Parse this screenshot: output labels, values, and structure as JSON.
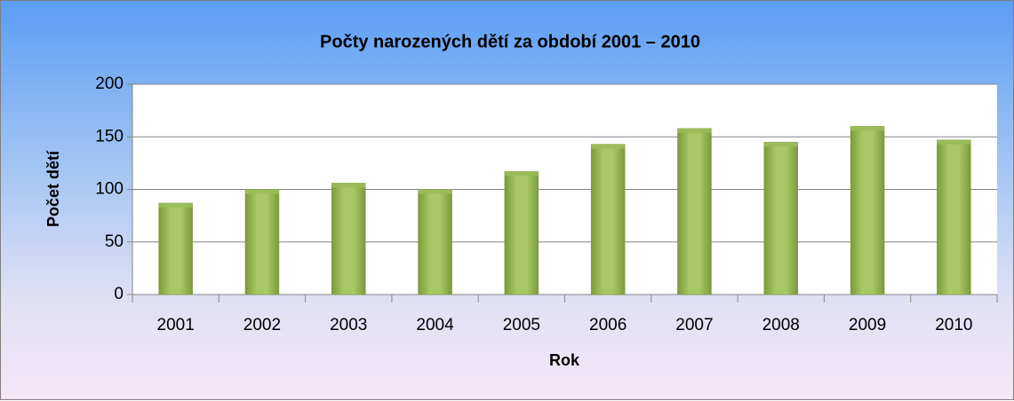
{
  "chart_data": {
    "type": "bar",
    "title": "Počty narozených dětí za období 2001 – 2010",
    "x_label": "Rok",
    "y_label": "Počet dětí",
    "categories": [
      "2001",
      "2002",
      "2003",
      "2004",
      "2005",
      "2006",
      "2007",
      "2008",
      "2009",
      "2010"
    ],
    "values": [
      87,
      100,
      106,
      100,
      117,
      143,
      158,
      145,
      160,
      147
    ],
    "color": "#9bbb59",
    "ylim": [
      0,
      200
    ],
    "yticks": [
      0,
      50,
      100,
      150,
      200
    ],
    "grid": true
  }
}
